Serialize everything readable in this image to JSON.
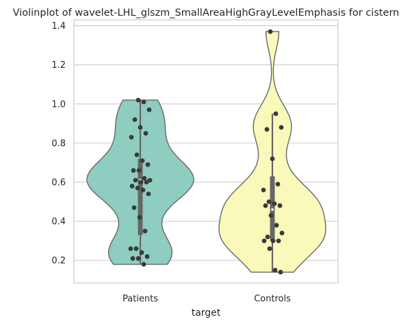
{
  "chart_data": {
    "type": "violin",
    "title": "Violinplot of wavelet-LHL_glszm_SmallAreaHighGrayLevelEmphasis for cistern",
    "xlabel": "target",
    "ylabel": "",
    "categories": [
      "Patients",
      "Controls"
    ],
    "ylim": [
      0.085,
      1.43
    ],
    "yticks": [
      0.2,
      0.4,
      0.6,
      0.8,
      1.0,
      1.2,
      1.4
    ],
    "ytick_labels": [
      "0.2",
      "0.4",
      "0.6",
      "0.8",
      "1.0",
      "1.2",
      "1.4"
    ],
    "grid": true,
    "colors": {
      "Patients": "#8ecdc0",
      "Controls": "#f9f9b9"
    },
    "series": [
      {
        "category": "Patients",
        "min": 0.18,
        "q1": 0.33,
        "median": 0.61,
        "q3": 0.72,
        "max": 1.02,
        "points": [
          1.02,
          1.01,
          0.97,
          0.92,
          0.88,
          0.85,
          0.83,
          0.74,
          0.71,
          0.69,
          0.66,
          0.66,
          0.62,
          0.61,
          0.61,
          0.6,
          0.6,
          0.58,
          0.57,
          0.56,
          0.54,
          0.47,
          0.42,
          0.35,
          0.26,
          0.26,
          0.24,
          0.22,
          0.21,
          0.21,
          0.18
        ]
      },
      {
        "category": "Controls",
        "min": 0.14,
        "q1": 0.3,
        "median": 0.46,
        "q3": 0.63,
        "max": 0.95,
        "points": [
          1.37,
          0.95,
          0.88,
          0.87,
          0.72,
          0.59,
          0.56,
          0.5,
          0.49,
          0.48,
          0.48,
          0.43,
          0.38,
          0.34,
          0.32,
          0.3,
          0.3,
          0.3,
          0.26,
          0.15,
          0.14
        ]
      }
    ]
  }
}
